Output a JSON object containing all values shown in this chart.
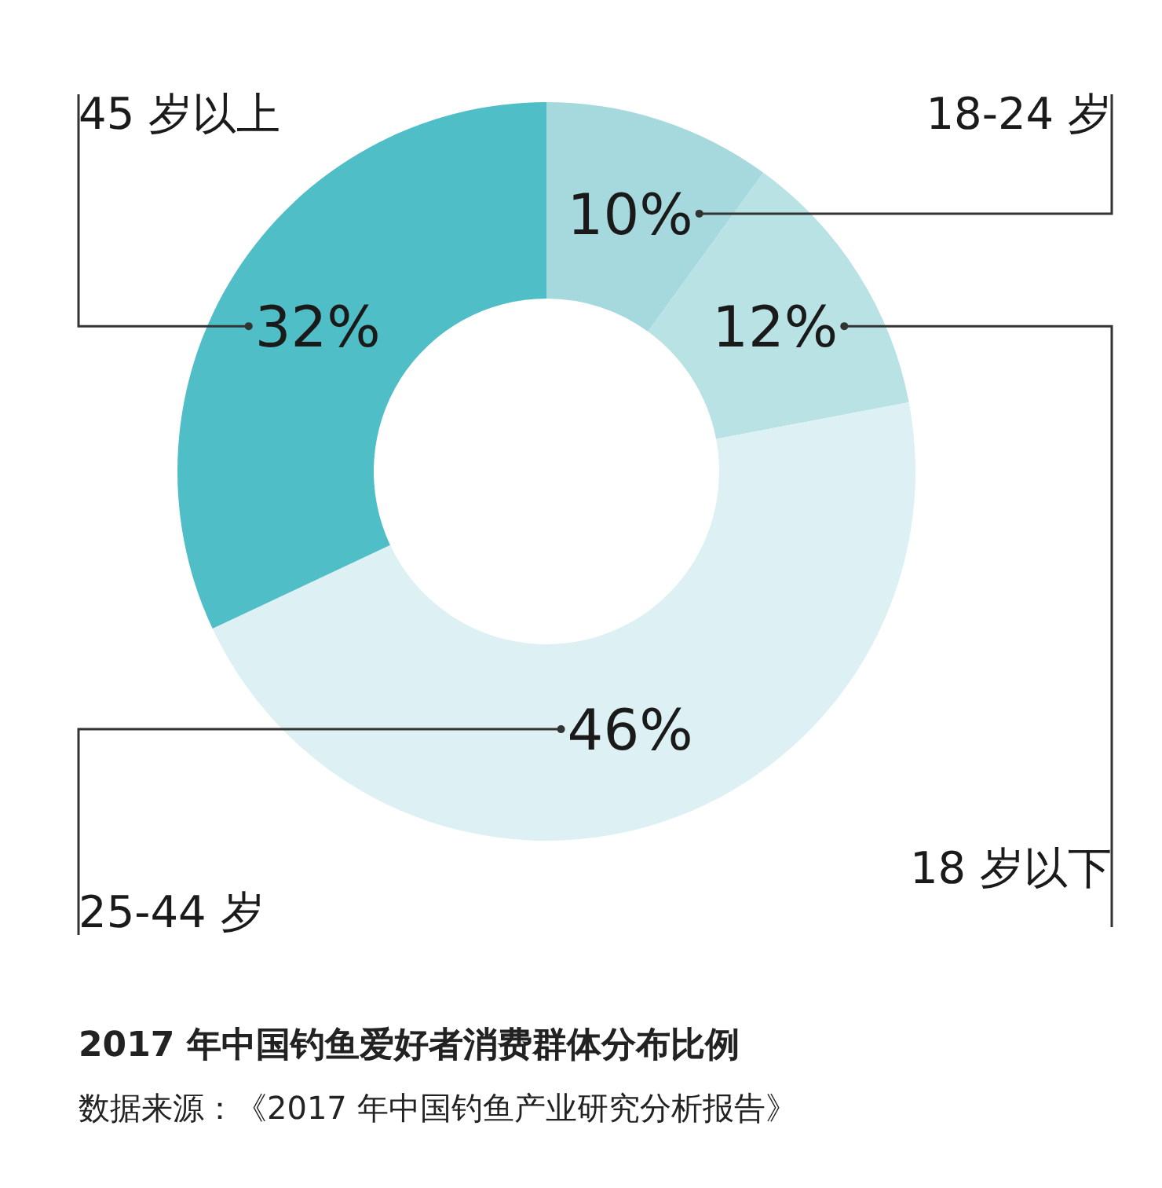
{
  "chart_data": {
    "type": "donut",
    "title": "2017 年中国钓鱼爱好者消费群体分布比例",
    "annotations": [
      "数据来源：《2017 年中国钓鱼产业研究分析报告》"
    ],
    "categories": [
      "18-24 岁",
      "18 岁以下",
      "25-44 岁",
      "45 岁以上"
    ],
    "values": [
      10,
      12,
      46,
      32
    ],
    "value_labels": [
      "10%",
      "12%",
      "46%",
      "32%"
    ],
    "colors": [
      "#a6d9dd",
      "#b9e2e5",
      "#ddf0f3",
      "#4fbec7"
    ],
    "legend": false
  }
}
